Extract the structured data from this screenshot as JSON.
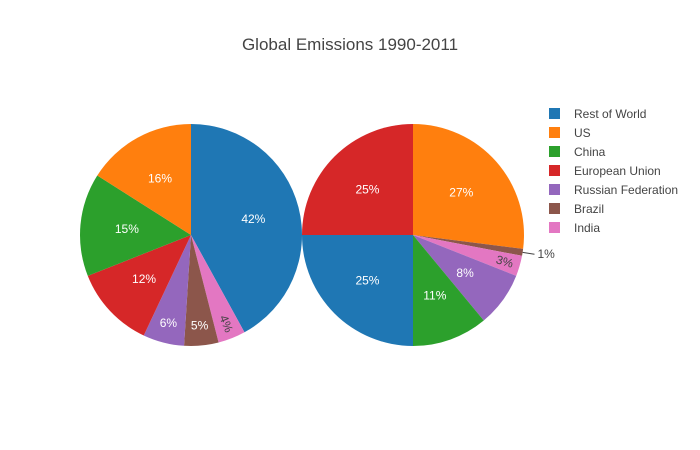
{
  "chart_data": {
    "type": "pie",
    "title": "Global Emissions 1990-2011",
    "legend_position": "right",
    "legend": [
      {
        "name": "Rest of World",
        "color": "#1f77b4"
      },
      {
        "name": "US",
        "color": "#ff7f0e"
      },
      {
        "name": "China",
        "color": "#2ca02c"
      },
      {
        "name": "European Union",
        "color": "#d62728"
      },
      {
        "name": "Russian Federation",
        "color": "#9467bd"
      },
      {
        "name": "Brazil",
        "color": "#8c564b"
      },
      {
        "name": "India",
        "color": "#e377c2"
      }
    ],
    "pies": [
      {
        "direction": "clockwise",
        "start_angle_deg": 0,
        "slices": [
          {
            "category": "Rest of World",
            "value": 42,
            "label": "42%"
          },
          {
            "category": "India",
            "value": 4,
            "label": "4%"
          },
          {
            "category": "Brazil",
            "value": 5,
            "label": "5%"
          },
          {
            "category": "Russian Federation",
            "value": 6,
            "label": "6%"
          },
          {
            "category": "European Union",
            "value": 12,
            "label": "12%"
          },
          {
            "category": "China",
            "value": 15,
            "label": "15%"
          },
          {
            "category": "US",
            "value": 16,
            "label": "16%"
          }
        ]
      },
      {
        "direction": "clockwise",
        "start_angle_deg": 0,
        "slices": [
          {
            "category": "US",
            "value": 27,
            "label": "27%"
          },
          {
            "category": "Brazil",
            "value": 1,
            "label": "1%"
          },
          {
            "category": "India",
            "value": 3,
            "label": "3%"
          },
          {
            "category": "Russian Federation",
            "value": 8,
            "label": "8%"
          },
          {
            "category": "China",
            "value": 11,
            "label": "11%"
          },
          {
            "category": "Rest of World",
            "value": 25,
            "label": "25%"
          },
          {
            "category": "European Union",
            "value": 25,
            "label": "25%"
          }
        ]
      }
    ]
  }
}
